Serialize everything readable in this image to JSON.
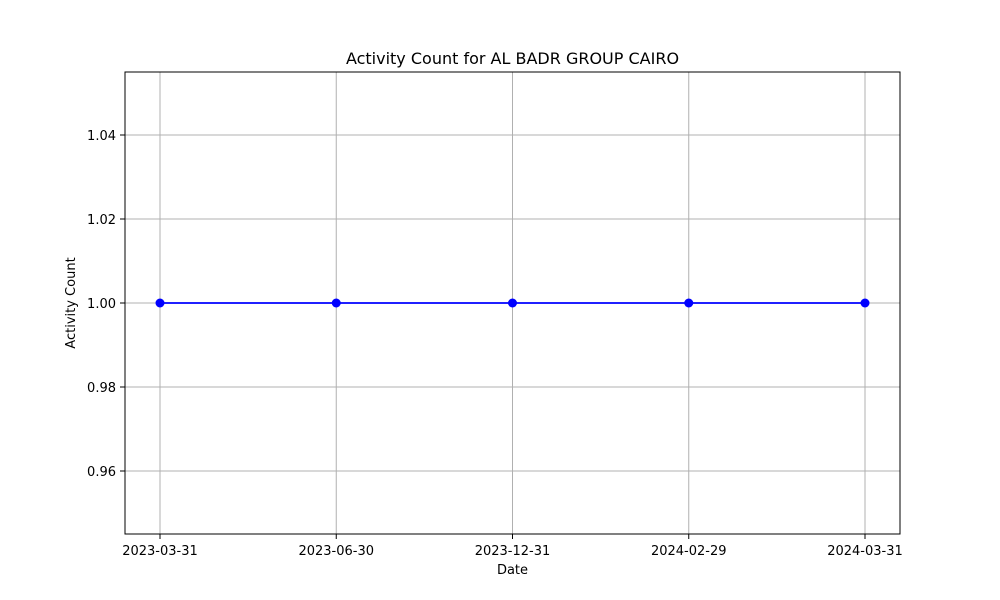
{
  "chart_data": {
    "type": "line",
    "title": "Activity Count for AL BADR GROUP CAIRO",
    "xlabel": "Date",
    "ylabel": "Activity Count",
    "categories": [
      "2023-03-31",
      "2023-06-30",
      "2023-12-31",
      "2024-02-29",
      "2024-03-31"
    ],
    "series": [
      {
        "values": [
          1.0,
          1.0,
          1.0,
          1.0,
          1.0
        ],
        "color": "#0000ff",
        "marker": "circle"
      }
    ],
    "ylim": [
      0.945,
      1.055
    ],
    "yticks": [
      "0.96",
      "0.98",
      "1.00",
      "1.02",
      "1.04"
    ],
    "grid": true,
    "legend": "none"
  }
}
